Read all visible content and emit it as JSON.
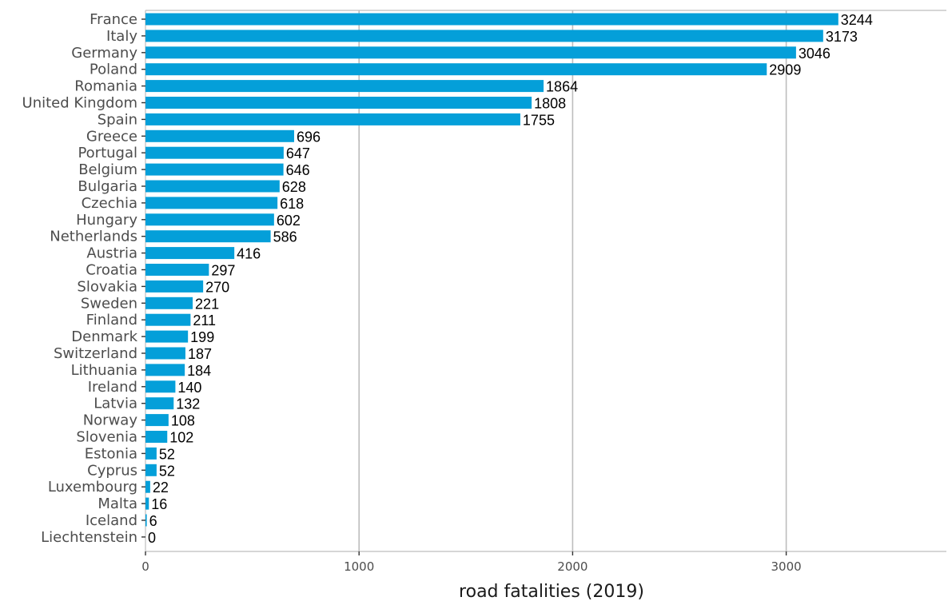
{
  "chart_data": {
    "type": "bar",
    "orientation": "horizontal",
    "categories": [
      "France",
      "Italy",
      "Germany",
      "Poland",
      "Romania",
      "United Kingdom",
      "Spain",
      "Greece",
      "Portugal",
      "Belgium",
      "Bulgaria",
      "Czechia",
      "Hungary",
      "Netherlands",
      "Austria",
      "Croatia",
      "Slovakia",
      "Sweden",
      "Finland",
      "Denmark",
      "Switzerland",
      "Lithuania",
      "Ireland",
      "Latvia",
      "Norway",
      "Slovenia",
      "Estonia",
      "Cyprus",
      "Luxembourg",
      "Malta",
      "Iceland",
      "Liechtenstein"
    ],
    "values": [
      3244,
      3173,
      3046,
      2909,
      1864,
      1808,
      1755,
      696,
      647,
      646,
      628,
      618,
      602,
      586,
      416,
      297,
      270,
      221,
      211,
      199,
      187,
      184,
      140,
      132,
      108,
      102,
      52,
      52,
      22,
      16,
      6,
      0
    ],
    "xlabel": "road fatalities (2019)",
    "ylabel": "",
    "xlim": [
      0,
      3750
    ],
    "xticks": [
      0,
      1000,
      2000,
      3000
    ],
    "bar_color": "#049fd9",
    "grid": "vertical major gridlines",
    "data_labels": true
  }
}
